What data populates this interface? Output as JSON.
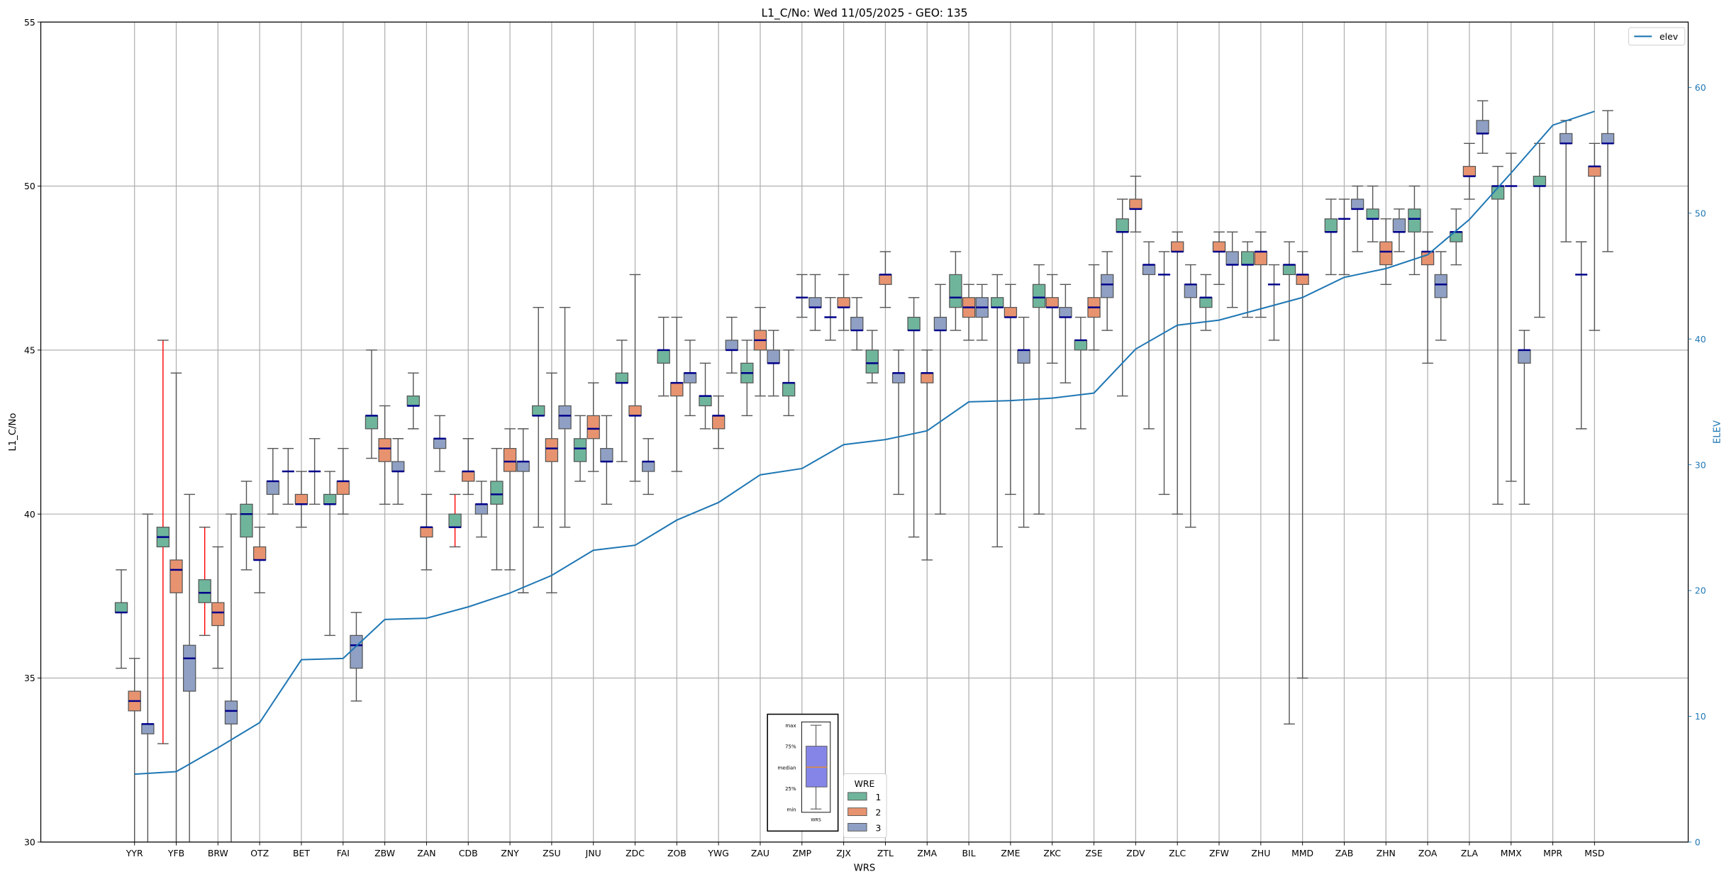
{
  "chart_data": {
    "type": "box",
    "title": "L1_C/No: Wed 11/05/2025 - GEO: 135",
    "xlabel": "WRS",
    "ylabel": "L1_C/No",
    "y2label": "ELEV",
    "ylim": [
      30,
      55
    ],
    "y2lim": [
      0,
      65.2
    ],
    "yticks": [
      30,
      35,
      40,
      45,
      50,
      55
    ],
    "y2ticks": [
      0,
      10,
      20,
      30,
      40,
      50,
      60
    ],
    "grid": true,
    "categories": [
      "YYR",
      "YFB",
      "BRW",
      "OTZ",
      "BET",
      "FAI",
      "ZBW",
      "ZAN",
      "CDB",
      "ZNY",
      "ZSU",
      "JNU",
      "ZDC",
      "ZOB",
      "YWG",
      "ZAU",
      "ZMP",
      "ZJX",
      "ZTL",
      "ZMA",
      "BIL",
      "ZME",
      "ZKC",
      "ZSE",
      "ZDV",
      "ZLC",
      "ZFW",
      "ZHU",
      "MMD",
      "ZAB",
      "ZHN",
      "ZOA",
      "ZLA",
      "MMX",
      "MPR",
      "MSD"
    ],
    "box_fields": [
      "min",
      "q1",
      "median",
      "q3",
      "max"
    ],
    "median_color": "#00008b",
    "whisker_color": "#555555",
    "highlight_whisker_color": "#ff0000",
    "series": [
      {
        "name": "1",
        "color": "#6fb59c",
        "red_whiskers": [
          "YFB",
          "BRW",
          "CDB"
        ],
        "boxes": [
          [
            35.3,
            37.0,
            37.0,
            37.3,
            38.3
          ],
          [
            33.0,
            39.0,
            39.3,
            39.6,
            45.3
          ],
          [
            36.3,
            37.3,
            37.6,
            38.0,
            39.6
          ],
          [
            38.3,
            39.3,
            40.0,
            40.3,
            41.0
          ],
          [
            40.3,
            41.3,
            41.3,
            41.3,
            42.0
          ],
          [
            36.3,
            40.3,
            40.3,
            40.6,
            41.3
          ],
          [
            41.7,
            42.6,
            43.0,
            43.0,
            45.0
          ],
          [
            42.6,
            43.3,
            43.3,
            43.6,
            44.3
          ],
          [
            39.0,
            39.6,
            39.6,
            40.0,
            40.6
          ],
          [
            38.3,
            40.3,
            40.6,
            41.0,
            42.0
          ],
          [
            39.6,
            43.0,
            43.0,
            43.3,
            46.3
          ],
          [
            41.0,
            41.6,
            42.0,
            42.3,
            43.0
          ],
          [
            41.6,
            44.0,
            44.0,
            44.3,
            45.3
          ],
          [
            43.6,
            44.6,
            45.0,
            45.0,
            46.0
          ],
          [
            42.6,
            43.3,
            43.6,
            43.6,
            44.6
          ],
          [
            43.0,
            44.0,
            44.3,
            44.6,
            45.3
          ],
          [
            43.0,
            43.6,
            44.0,
            44.0,
            45.0
          ],
          [
            45.3,
            46.0,
            46.0,
            46.0,
            46.6
          ],
          [
            44.0,
            44.3,
            44.6,
            45.0,
            45.6
          ],
          [
            39.3,
            45.6,
            45.6,
            46.0,
            46.6
          ],
          [
            45.6,
            46.3,
            46.6,
            47.3,
            48.0
          ],
          [
            39.0,
            46.3,
            46.3,
            46.6,
            47.3
          ],
          [
            40.0,
            46.3,
            46.6,
            47.0,
            47.6
          ],
          [
            42.6,
            45.0,
            45.3,
            45.3,
            46.0
          ],
          [
            43.6,
            48.6,
            48.6,
            49.0,
            49.6
          ],
          [
            40.6,
            47.3,
            47.3,
            47.3,
            48.0
          ],
          [
            45.6,
            46.3,
            46.6,
            46.6,
            47.3
          ],
          [
            46.0,
            47.6,
            47.6,
            48.0,
            48.3
          ],
          [
            33.6,
            47.3,
            47.6,
            47.6,
            48.3
          ],
          [
            47.3,
            48.6,
            48.6,
            49.0,
            49.6
          ],
          [
            48.3,
            49.0,
            49.0,
            49.3,
            50.0
          ],
          [
            47.3,
            48.6,
            49.0,
            49.3,
            50.0
          ],
          [
            47.6,
            48.3,
            48.6,
            48.6,
            49.3
          ],
          [
            40.3,
            49.6,
            50.0,
            50.0,
            50.6
          ],
          [
            46.0,
            50.0,
            50.0,
            50.3,
            51.3
          ],
          [
            42.6,
            47.3,
            47.3,
            47.3,
            48.3
          ]
        ]
      },
      {
        "name": "2",
        "color": "#e8936f",
        "red_whiskers": [],
        "boxes": [
          [
            29,
            34.0,
            34.3,
            34.6,
            35.6
          ],
          [
            29,
            37.6,
            38.3,
            38.6,
            44.3
          ],
          [
            35.3,
            36.6,
            37.0,
            37.3,
            39.0
          ],
          [
            37.6,
            38.6,
            38.6,
            39.0,
            39.6
          ],
          [
            39.6,
            40.3,
            40.3,
            40.6,
            41.3
          ],
          [
            40.0,
            40.6,
            41.0,
            41.0,
            42.0
          ],
          [
            40.3,
            41.6,
            42.0,
            42.3,
            43.3
          ],
          [
            38.3,
            39.3,
            39.6,
            39.6,
            40.6
          ],
          [
            40.6,
            41.0,
            41.3,
            41.3,
            42.3
          ],
          [
            38.3,
            41.3,
            41.6,
            42.0,
            42.6
          ],
          [
            37.6,
            41.6,
            42.0,
            42.3,
            44.3
          ],
          [
            41.3,
            42.3,
            42.6,
            43.0,
            44.0
          ],
          [
            41.0,
            43.0,
            43.0,
            43.3,
            47.3
          ],
          [
            41.3,
            43.6,
            44.0,
            44.0,
            46.0
          ],
          [
            42.0,
            42.6,
            43.0,
            43.0,
            43.6
          ],
          [
            43.6,
            45.0,
            45.3,
            45.6,
            46.3
          ],
          [
            46.0,
            46.6,
            46.6,
            46.6,
            47.3
          ],
          [
            45.6,
            46.3,
            46.3,
            46.6,
            47.3
          ],
          [
            46.3,
            47.0,
            47.3,
            47.3,
            48.0
          ],
          [
            38.6,
            44.0,
            44.3,
            44.3,
            45.0
          ],
          [
            45.3,
            46.0,
            46.3,
            46.6,
            47.0
          ],
          [
            40.6,
            46.0,
            46.0,
            46.3,
            47.0
          ],
          [
            44.6,
            46.3,
            46.3,
            46.6,
            47.3
          ],
          [
            45.0,
            46.0,
            46.3,
            46.6,
            47.6
          ],
          [
            48.6,
            49.3,
            49.3,
            49.6,
            50.3
          ],
          [
            40.0,
            48.0,
            48.0,
            48.3,
            48.6
          ],
          [
            47.0,
            48.0,
            48.0,
            48.3,
            48.6
          ],
          [
            46.0,
            47.6,
            48.0,
            48.0,
            48.6
          ],
          [
            35.0,
            47.0,
            47.3,
            47.3,
            48.0
          ],
          [
            47.3,
            49.0,
            49.0,
            49.0,
            49.6
          ],
          [
            47.0,
            47.6,
            48.0,
            48.3,
            49.0
          ],
          [
            44.6,
            47.6,
            48.0,
            48.0,
            48.6
          ],
          [
            49.6,
            50.3,
            50.3,
            50.6,
            51.3
          ],
          [
            41.0,
            50.0,
            50.0,
            50.0,
            51.0
          ],
          null,
          [
            45.6,
            50.3,
            50.6,
            50.6,
            51.3
          ]
        ]
      },
      {
        "name": "3",
        "color": "#8fa0c4",
        "red_whiskers": [],
        "boxes": [
          [
            29,
            33.3,
            33.6,
            33.6,
            40.0
          ],
          [
            29,
            34.6,
            35.6,
            36.0,
            40.6
          ],
          [
            29,
            33.6,
            34.0,
            34.3,
            40.0
          ],
          [
            40.0,
            40.6,
            41.0,
            41.0,
            42.0
          ],
          [
            40.3,
            41.3,
            41.3,
            41.3,
            42.3
          ],
          [
            34.3,
            35.3,
            36.0,
            36.3,
            37.0
          ],
          [
            40.3,
            41.3,
            41.3,
            41.6,
            42.3
          ],
          [
            41.3,
            42.0,
            42.3,
            42.3,
            43.0
          ],
          [
            39.3,
            40.0,
            40.3,
            40.3,
            41.0
          ],
          [
            37.6,
            41.3,
            41.6,
            41.6,
            42.6
          ],
          [
            39.6,
            42.6,
            43.0,
            43.3,
            46.3
          ],
          [
            40.3,
            41.6,
            41.6,
            42.0,
            43.0
          ],
          [
            40.6,
            41.3,
            41.6,
            41.6,
            42.3
          ],
          [
            43.0,
            44.0,
            44.3,
            44.3,
            45.3
          ],
          [
            44.3,
            45.0,
            45.0,
            45.3,
            46.0
          ],
          [
            43.6,
            44.6,
            44.6,
            45.0,
            45.6
          ],
          [
            45.6,
            46.3,
            46.3,
            46.6,
            47.3
          ],
          [
            45.0,
            45.6,
            45.6,
            46.0,
            46.6
          ],
          [
            40.6,
            44.0,
            44.3,
            44.3,
            45.0
          ],
          [
            40.0,
            45.6,
            45.6,
            46.0,
            47.0
          ],
          [
            45.3,
            46.0,
            46.3,
            46.6,
            47.0
          ],
          [
            39.6,
            44.6,
            45.0,
            45.0,
            46.0
          ],
          [
            44.0,
            46.0,
            46.0,
            46.3,
            47.0
          ],
          [
            45.6,
            46.6,
            47.0,
            47.3,
            48.0
          ],
          [
            42.6,
            47.3,
            47.6,
            47.6,
            48.3
          ],
          [
            39.6,
            46.6,
            47.0,
            47.0,
            47.6
          ],
          [
            46.3,
            47.6,
            47.6,
            48.0,
            48.6
          ],
          [
            45.3,
            47.0,
            47.0,
            47.0,
            47.6
          ],
          null,
          [
            48.0,
            49.3,
            49.3,
            49.6,
            50.0
          ],
          [
            48.0,
            48.6,
            48.6,
            49.0,
            49.3
          ],
          [
            45.3,
            46.6,
            47.0,
            47.3,
            48.0
          ],
          [
            51.0,
            51.6,
            51.6,
            52.0,
            52.6
          ],
          [
            40.3,
            44.6,
            45.0,
            45.0,
            45.6
          ],
          [
            48.3,
            51.3,
            51.3,
            51.6,
            52.0
          ],
          [
            48.0,
            51.3,
            51.3,
            51.6,
            52.3
          ]
        ]
      }
    ],
    "elev": {
      "name": "elev",
      "color": "#1f77b4",
      "values": [
        5.4,
        5.6,
        7.5,
        9.5,
        14.5,
        14.6,
        17.7,
        17.8,
        18.7,
        19.8,
        21.2,
        23.2,
        23.6,
        25.6,
        27.0,
        29.2,
        29.7,
        31.6,
        32.0,
        32.7,
        35.0,
        35.1,
        35.3,
        35.7,
        39.2,
        41.1,
        41.5,
        42.4,
        43.3,
        44.9,
        45.6,
        46.7,
        49.5,
        53.2,
        57.0,
        58.1
      ]
    },
    "legend_elev": {
      "label": "elev",
      "placement": "top-right"
    },
    "legend_wre": {
      "title": "WRE",
      "labels": [
        "1",
        "2",
        "3"
      ],
      "placement": "bottom-center"
    },
    "inset_key": {
      "labels": [
        "max",
        "75%",
        "median",
        "25%",
        "min"
      ],
      "xlabel": "WRS",
      "box_color": "#8585e8",
      "median_color": "#ff8c00"
    }
  }
}
